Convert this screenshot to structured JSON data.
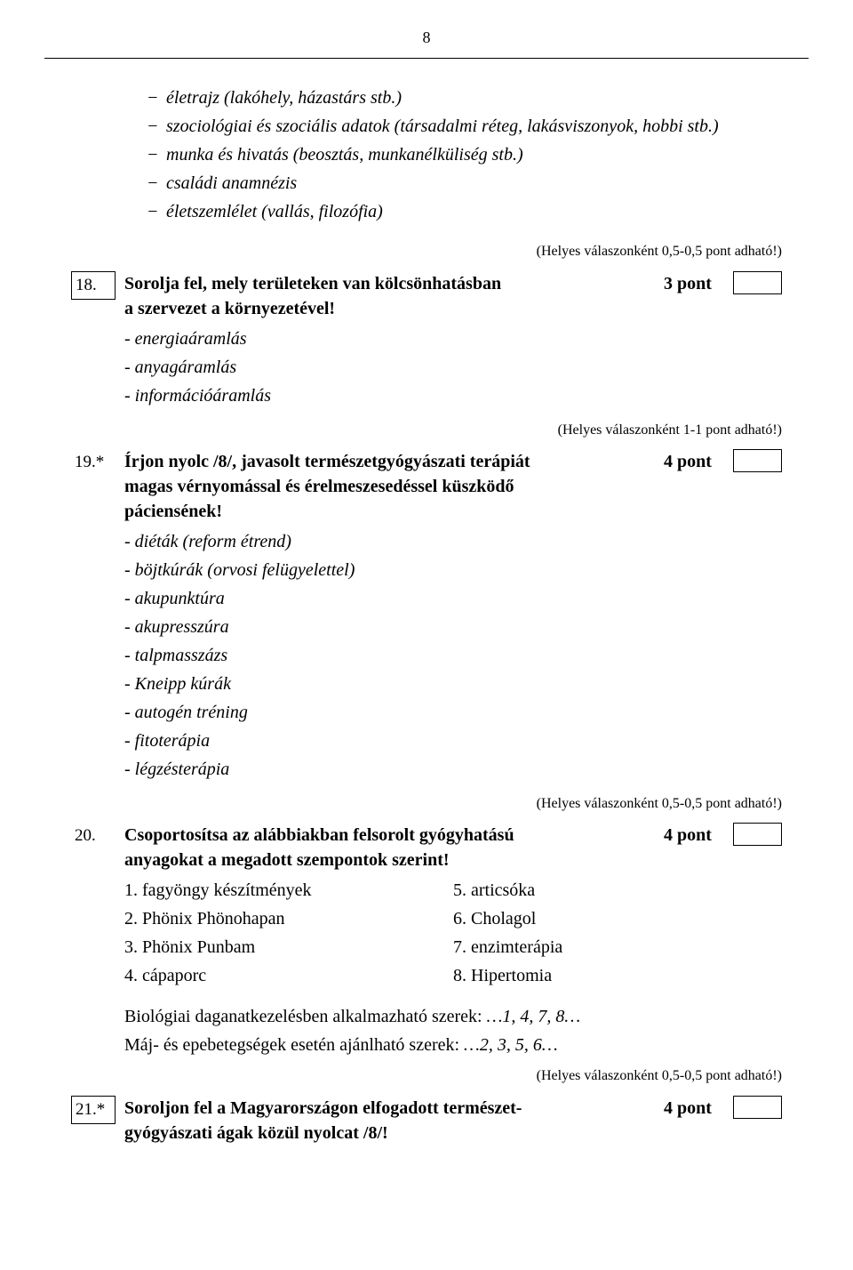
{
  "page_number": "8",
  "intro_items": [
    "életrajz (lakóhely, házastárs stb.)",
    "szociológiai és szociális adatok (társadalmi réteg, lakásviszonyok, hobbi stb.)",
    "munka és hivatás (beosztás, munkanélküliség stb.)",
    "családi anamnézis",
    "életszemlélet (vallás, filozófia)"
  ],
  "note_half": "(Helyes válaszonként 0,5-0,5 pont adható!)",
  "note_one": "(Helyes válaszonként 1-1 pont adható!)",
  "q18": {
    "num": "18.",
    "text1": "Sorolja fel, mely területeken van kölcsönhatásban",
    "text2": "a szervezet a környezetével!",
    "points": "3 pont",
    "answers": [
      "- energiaáramlás",
      "- anyagáramlás",
      "- információáramlás"
    ]
  },
  "q19": {
    "num": "19.*",
    "text1": "Írjon nyolc /8/, javasolt természetgyógyászati terápiát",
    "text2": "magas vérnyomással és érelmeszesedéssel küszködő",
    "text3": "páciensének!",
    "points": "4 pont",
    "answers": [
      "- diéták (reform étrend)",
      "- böjtkúrák (orvosi felügyelettel)",
      "- akupunktúra",
      "- akupresszúra",
      "- talpmasszázs",
      "- Kneipp kúrák",
      "- autogén tréning",
      "- fitoterápia",
      "- légzésterápia"
    ]
  },
  "q20": {
    "num": "20.",
    "text1": "Csoportosítsa az alábbiakban felsorolt gyógyhatású",
    "text2": "anyagokat a megadott szempontok szerint!",
    "points": "4 pont",
    "col1": [
      "1. fagyöngy készítmények",
      "2. Phönix Phönohapan",
      "3. Phönix Punbam",
      "4. cápaporc"
    ],
    "col2": [
      "5. articsóka",
      "6. Cholagol",
      "7. enzimterápia",
      "8. Hipertomia"
    ],
    "answer1_label": "Biológiai daganatkezelésben alkalmazható szerek:",
    "answer1_val": "…1, 4, 7, 8…",
    "answer2_label": "Máj- és epebetegségek esetén ajánlható szerek:",
    "answer2_val": "…2, 3, 5, 6…"
  },
  "q21": {
    "num": "21.*",
    "text1": "Soroljon fel a Magyarországon elfogadott természet-",
    "text2": "gyógyászati ágak közül nyolcat /8/!",
    "points": "4 pont"
  }
}
